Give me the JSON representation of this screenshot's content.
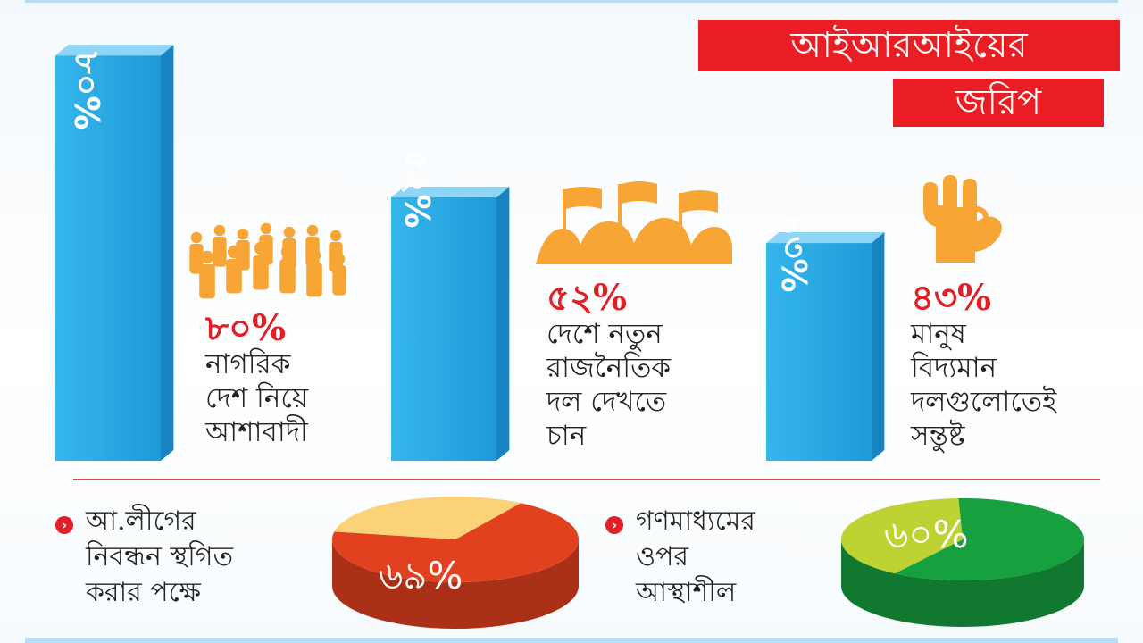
{
  "title": {
    "line1": "আইআরআইয়ের",
    "line2": "জরিপ"
  },
  "chart_data": [
    {
      "type": "bar",
      "categories": [
        "নাগরিক দেশ নিয়ে আশাবাদী",
        "দেশে নতুন রাজনৈতিক দল দেখতে চান",
        "মানুষ বিদ্যমান দলগুলোতেই সন্তুষ্ট"
      ],
      "values": [
        80,
        52,
        43
      ],
      "ylim": [
        0,
        100
      ],
      "bar_labels": [
        "৮০%",
        "৫২%",
        "৪৩%"
      ],
      "pct_labels": [
        "৮০%",
        "৫২%",
        "৪৩%"
      ],
      "descriptions": [
        [
          "নাগরিক",
          "দেশ নিয়ে",
          "আশাবাদী"
        ],
        [
          "দেশে নতুন",
          "রাজনৈতিক",
          "দল দেখতে",
          "চান"
        ],
        [
          "মানুষ",
          "বিদ্যমান",
          "দলগুলোতেই",
          "সন্তুষ্ট"
        ]
      ],
      "icons": [
        "crowd-icon",
        "protest-flags-icon",
        "ok-hand-icon"
      ],
      "colors": {
        "bar": "#27a9e1",
        "icon": "#f7a535",
        "pct": "#e01f26"
      }
    },
    {
      "type": "pie",
      "label_lines": [
        "আ.লীগের",
        "নিবন্ধন স্থগিত",
        "করার পক্ষে"
      ],
      "value": 69,
      "value_label": "৬৯%",
      "colors": {
        "main": "#e2411f",
        "rest": "#fbd277"
      }
    },
    {
      "type": "pie",
      "label_lines": [
        "গণমাধ্যমের",
        "ওপর",
        "আস্থাশীল"
      ],
      "value": 60,
      "value_label": "৬০%",
      "colors": {
        "main": "#16a040",
        "rest": "#bfd233"
      }
    }
  ]
}
